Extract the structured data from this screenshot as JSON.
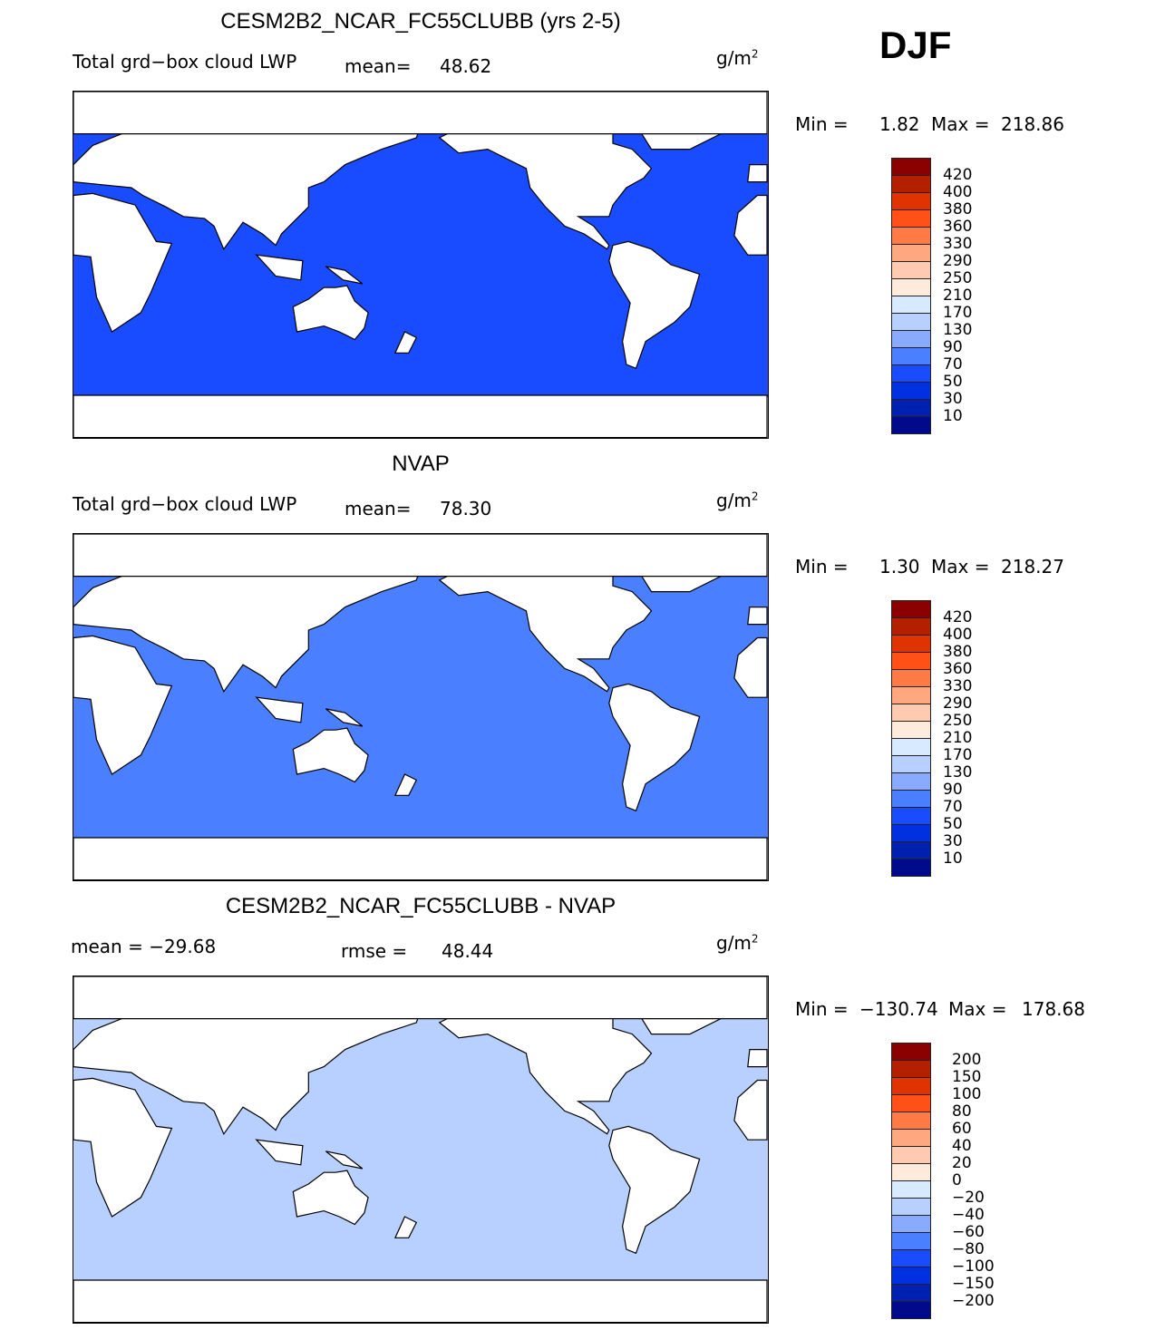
{
  "season": "DJF",
  "panels": [
    {
      "title": "CESM2B2_NCAR_FC55CLUBB (yrs 2-5)",
      "left_label": "Total grd−box cloud LWP",
      "mean_label": "mean=",
      "mean": "48.62",
      "units": "g/m",
      "units_sup": "2",
      "min_label": "Min =",
      "min": "1.82",
      "max_label": "Max =",
      "max": "218.86",
      "levels": [
        "420",
        "400",
        "380",
        "360",
        "330",
        "290",
        "250",
        "210",
        "170",
        "130",
        "90",
        "70",
        "50",
        "30",
        "10"
      ]
    },
    {
      "title": "NVAP",
      "left_label": "Total grd−box cloud LWP",
      "mean_label": "mean=",
      "mean": "78.30",
      "units": "g/m",
      "units_sup": "2",
      "min_label": "Min =",
      "min": "1.30",
      "max_label": "Max =",
      "max": "218.27",
      "levels": [
        "420",
        "400",
        "380",
        "360",
        "330",
        "290",
        "250",
        "210",
        "170",
        "130",
        "90",
        "70",
        "50",
        "30",
        "10"
      ]
    },
    {
      "title": "CESM2B2_NCAR_FC55CLUBB - NVAP",
      "left_label": "mean = −29.68",
      "mean_label": "rmse =",
      "mean": "48.44",
      "units": "g/m",
      "units_sup": "2",
      "min_label": "Min =",
      "min": "−130.74",
      "max_label": "Max =",
      "max": "178.68",
      "levels": [
        "200",
        "150",
        "100",
        "80",
        "60",
        "40",
        "20",
        "0",
        "−20",
        "−40",
        "−60",
        "−80",
        "−100",
        "−150",
        "−200"
      ]
    }
  ],
  "colors": [
    "#8b0000",
    "#b22000",
    "#e03400",
    "#ff5018",
    "#ff7a45",
    "#ffa880",
    "#ffcbb0",
    "#ffebdb",
    "#d8eaff",
    "#b8d0ff",
    "#88aaff",
    "#4a80ff",
    "#1a4cff",
    "#0030e0",
    "#0020b0",
    "#000a8a"
  ]
}
